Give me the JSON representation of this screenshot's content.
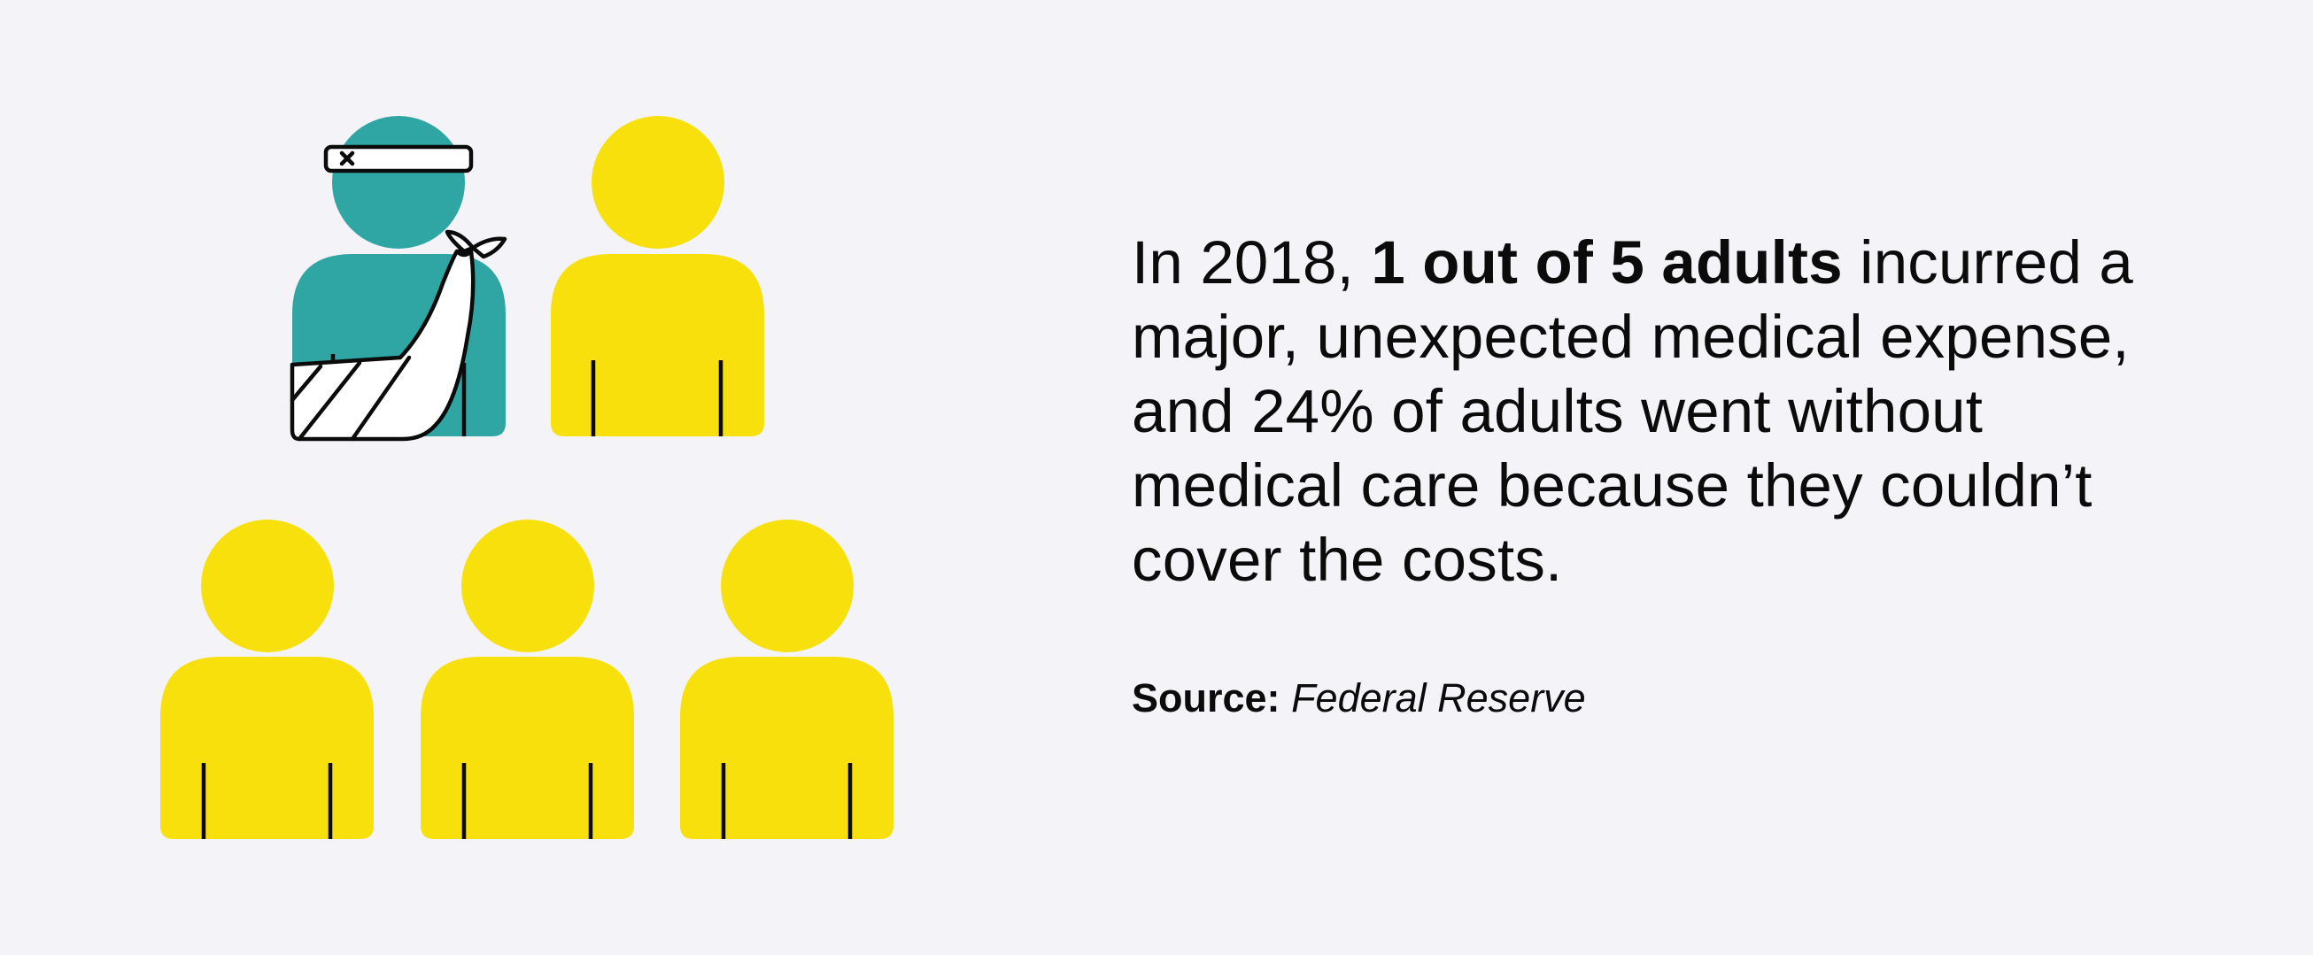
{
  "colors": {
    "background": "#f4f4f8",
    "highlight_person": "#2fa6a4",
    "other_people": "#f7e00c",
    "outline": "#0b0b0b"
  },
  "illustration": {
    "total_people": 5,
    "injured_people": 1,
    "icons": [
      "injured-person-icon",
      "person-icon"
    ]
  },
  "statement": {
    "intro": "In 2018, ",
    "highlight": "1 out of 5 adults",
    "rest": " incurred a major, unexpected medical expense, and 24% of adults went without medical care because they couldn’t cover the costs."
  },
  "source": {
    "label": "Source:",
    "value": "Federal Reserve"
  }
}
